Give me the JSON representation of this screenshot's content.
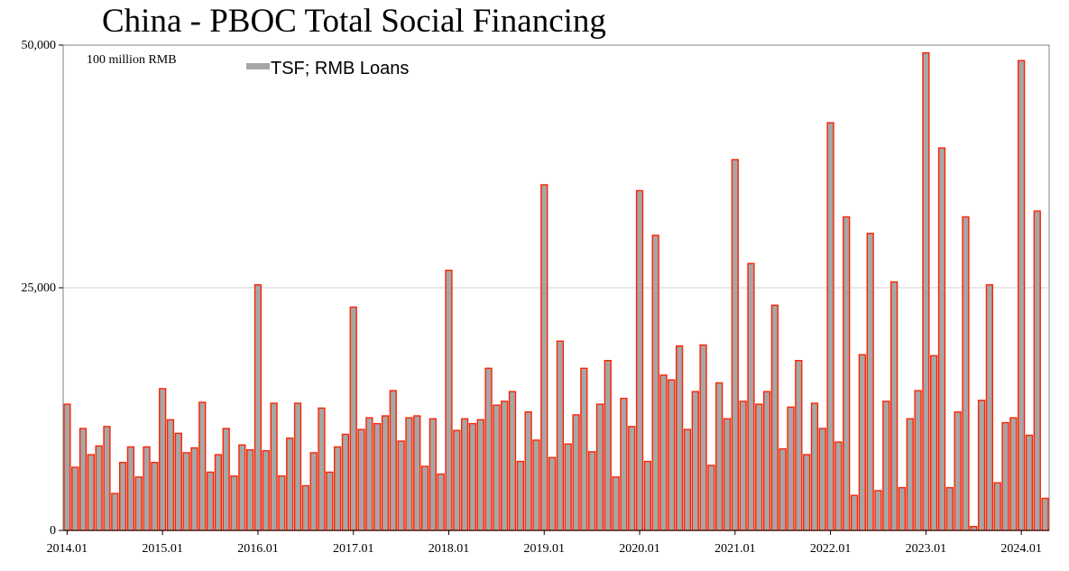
{
  "title": "China - PBOC Total Social Financing",
  "chart_data": {
    "type": "bar",
    "unit_label": "100 million RMB",
    "legend": "TSF; RMB Loans",
    "ylim": [
      0,
      50000
    ],
    "y_ticks": [
      "0",
      "25,000",
      "50,000"
    ],
    "x_ticks": [
      "2014.01",
      "2015.01",
      "2016.01",
      "2017.01",
      "2018.01",
      "2019.01",
      "2020.01",
      "2021.01",
      "2022.01",
      "2023.01",
      "2024.01"
    ],
    "start": "2014-01",
    "grid": "horizontal",
    "legend_position": "top-left",
    "colors": {
      "bar_fill": "#a6a6a6",
      "bar_edge": "#ff2200",
      "axis": "#000000",
      "grid": "#d0d0d0",
      "border": "#808080"
    },
    "series": [
      {
        "name": "TSF; RMB Loans",
        "values": [
          13000,
          6500,
          10500,
          7800,
          8700,
          10700,
          3800,
          7000,
          8600,
          5500,
          8600,
          7000,
          14600,
          11400,
          10000,
          8000,
          8500,
          13200,
          6000,
          7800,
          10500,
          5600,
          8800,
          8300,
          25300,
          8200,
          13100,
          5600,
          9500,
          13100,
          4600,
          8000,
          12600,
          6000,
          8600,
          9900,
          23000,
          10400,
          11600,
          11000,
          11800,
          14400,
          9200,
          11600,
          11800,
          6600,
          11500,
          5800,
          26800,
          10300,
          11500,
          11000,
          11400,
          16700,
          12900,
          13300,
          14300,
          7100,
          12200,
          9300,
          35600,
          7500,
          19500,
          8900,
          11900,
          16700,
          8100,
          13000,
          17500,
          5500,
          13600,
          10700,
          35000,
          7100,
          30400,
          16000,
          15500,
          19000,
          10400,
          14300,
          19100,
          6700,
          15200,
          11500,
          38200,
          13300,
          27500,
          13000,
          14300,
          23200,
          8400,
          12700,
          17500,
          7800,
          13100,
          10500,
          42000,
          9100,
          32300,
          3600,
          18100,
          30600,
          4100,
          13300,
          25600,
          4400,
          11500,
          14400,
          49200,
          18000,
          39400,
          4400,
          12200,
          32300,
          400,
          13400,
          25300,
          4900,
          11100,
          11600,
          48400,
          9800,
          32900,
          3300
        ]
      }
    ]
  }
}
